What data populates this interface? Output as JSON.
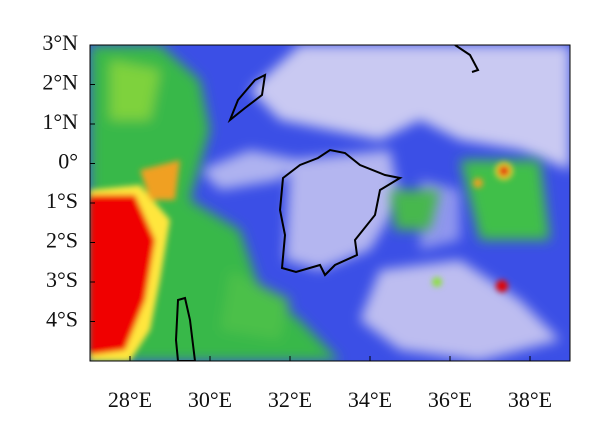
{
  "chart_data": {
    "type": "map",
    "xlim": [
      27,
      39
    ],
    "ylim": [
      -5,
      3
    ],
    "xticks": [
      {
        "value": 28,
        "label": "28°E"
      },
      {
        "value": 30,
        "label": "30°E"
      },
      {
        "value": 32,
        "label": "32°E"
      },
      {
        "value": 34,
        "label": "34°E"
      },
      {
        "value": 36,
        "label": "36°E"
      },
      {
        "value": 38,
        "label": "38°E"
      }
    ],
    "yticks": [
      {
        "value": 3,
        "label": "3°N"
      },
      {
        "value": 2,
        "label": "2°N"
      },
      {
        "value": 1,
        "label": "1°N"
      },
      {
        "value": 0,
        "label": "0°"
      },
      {
        "value": -1,
        "label": "1°S"
      },
      {
        "value": -2,
        "label": "2°S"
      },
      {
        "value": -3,
        "label": "3°S"
      },
      {
        "value": -4,
        "label": "4°S"
      }
    ]
  }
}
